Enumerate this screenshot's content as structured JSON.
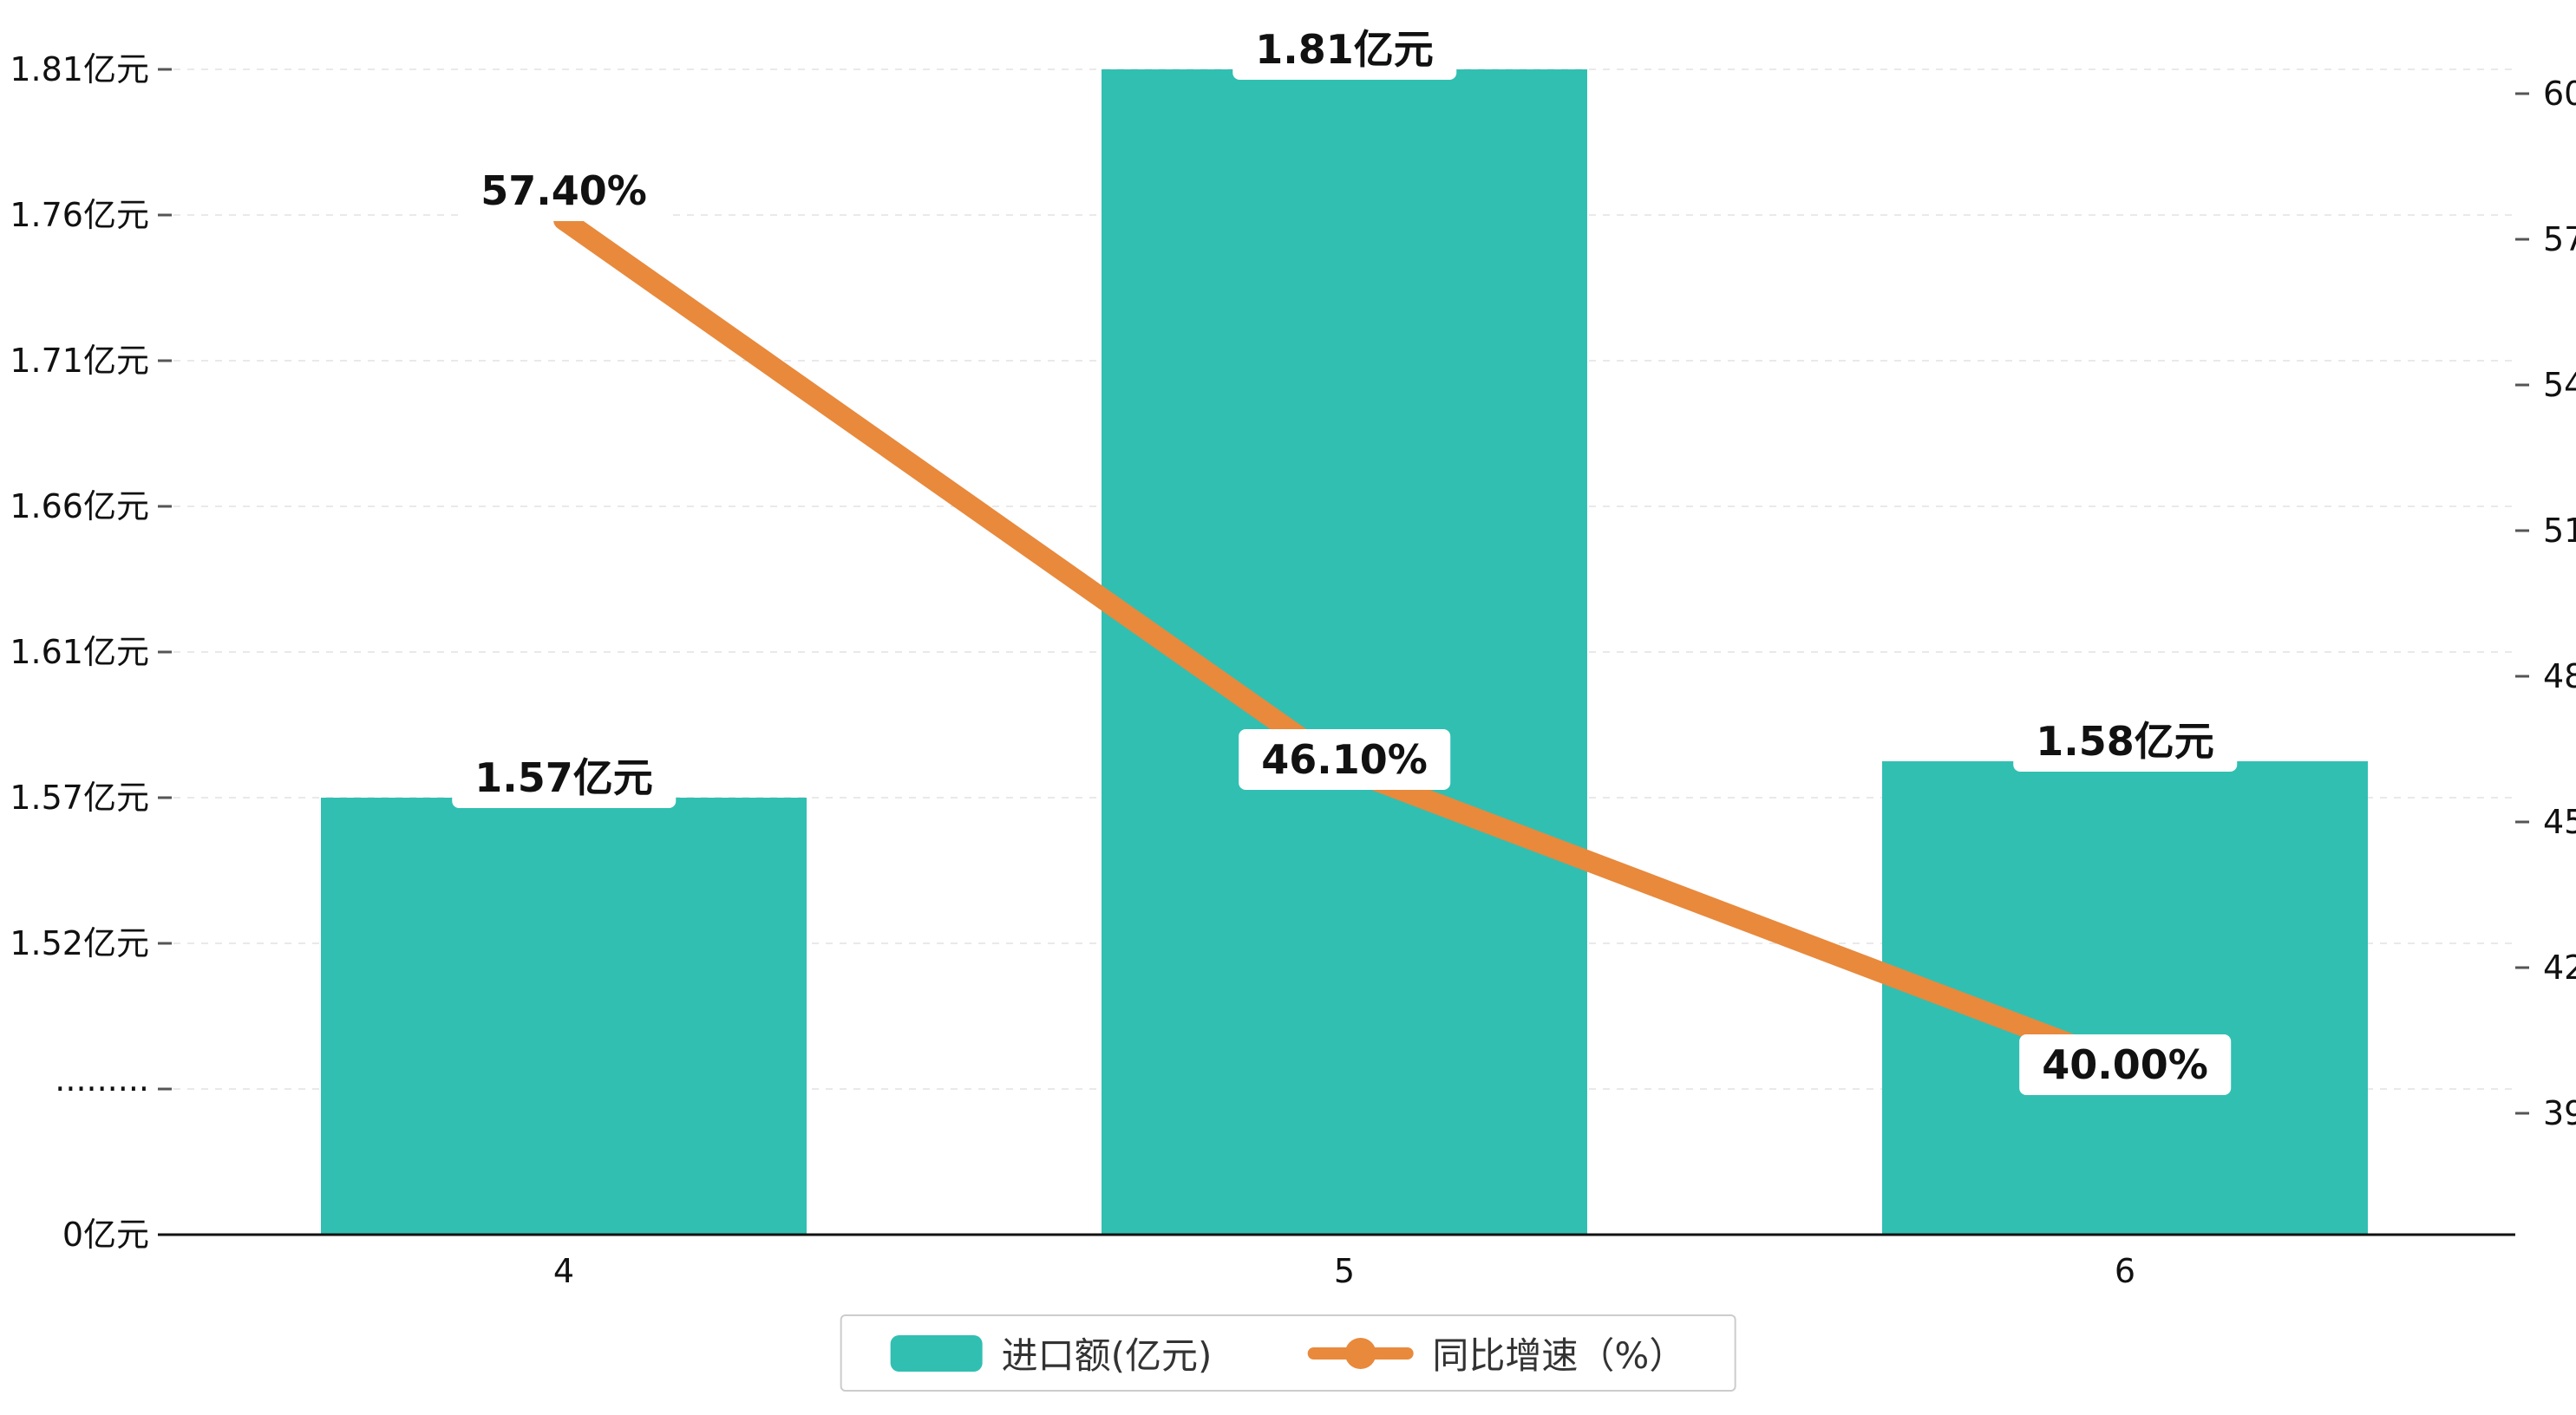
{
  "background": "#ffffff",
  "chart_data": {
    "type": "bar",
    "subtype": "bar-line-combo",
    "categories": [
      "4",
      "5",
      "6"
    ],
    "series": [
      {
        "name": "进口额(亿元)",
        "type": "bar",
        "color": "#31bfb2",
        "values": [
          1.57,
          1.81,
          1.58
        ],
        "data_labels": [
          "1.57亿元",
          "1.81亿元",
          "1.58亿元"
        ]
      },
      {
        "name": "同比增速（%）",
        "type": "line",
        "color": "#e8893c",
        "values": [
          57.4,
          46.1,
          40.0
        ],
        "data_labels": [
          "57.40%",
          "46.10%",
          "40.00%"
        ]
      }
    ],
    "left_axis": {
      "tick_labels": [
        "1.81亿元",
        "1.76亿元",
        "1.71亿元",
        "1.66亿元",
        "1.61亿元",
        "1.57亿元",
        "1.52亿元",
        "·········",
        "0亿元"
      ],
      "tick_values": [
        1.81,
        1.76,
        1.71,
        1.66,
        1.61,
        1.57,
        1.52,
        null,
        0
      ],
      "broken_axis": true
    },
    "right_axis": {
      "tick_labels": [
        "60",
        "57",
        "54",
        "51",
        "48",
        "45",
        "42",
        "39"
      ],
      "max": 60,
      "min": 39,
      "step": 3
    },
    "grid": "dashed-horizontal",
    "legend_position": "bottom-center",
    "legend": [
      {
        "label": "进口额(亿元)",
        "marker": "bar-swatch",
        "color": "#31bfb2"
      },
      {
        "label": "同比增速（%）",
        "marker": "line-dot",
        "color": "#e8893c"
      }
    ],
    "colors": {
      "bar": "#31bfb2",
      "line": "#e8893c",
      "gridline": "#e9e9e9",
      "axis_line": "#111111",
      "tick": "#555555",
      "text": "#111111"
    }
  }
}
